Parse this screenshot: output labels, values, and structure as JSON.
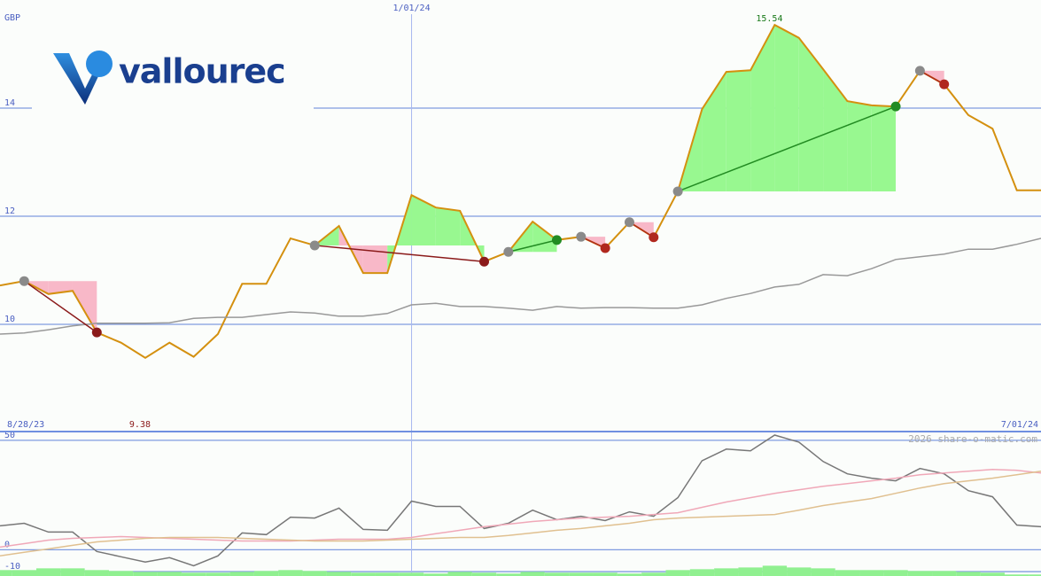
{
  "logo": "vallourec",
  "chart_data": [
    {
      "type": "line",
      "unit_label": "GBP",
      "categories": [
        "8/28/23",
        null,
        null,
        null,
        null,
        null,
        null,
        null,
        null,
        null,
        null,
        null,
        null,
        null,
        null,
        null,
        null,
        "1/01/24",
        null,
        null,
        null,
        null,
        null,
        null,
        null,
        null,
        null,
        null,
        null,
        null,
        null,
        null,
        null,
        null,
        null,
        null,
        null,
        null,
        null,
        null,
        null,
        null,
        null,
        "7/01/24"
      ],
      "series": [
        {
          "color": "#d4900f",
          "values": [
            10.72,
            10.8,
            10.56,
            10.62,
            9.85,
            9.66,
            9.38,
            9.66,
            9.4,
            9.82,
            10.75,
            10.75,
            11.59,
            11.46,
            11.82,
            10.95,
            10.95,
            12.39,
            12.16,
            12.1,
            11.16,
            11.34,
            11.9,
            11.56,
            11.62,
            11.41,
            11.89,
            11.61,
            12.46,
            13.98,
            14.67,
            14.7,
            15.54,
            15.3,
            14.72,
            14.13,
            14.05,
            14.03,
            14.69,
            14.44,
            13.87,
            13.62,
            12.48,
            12.48
          ]
        },
        {
          "color": "#999999",
          "values": [
            9.82,
            9.84,
            9.9,
            9.97,
            10.02,
            10.02,
            10.02,
            10.03,
            10.11,
            10.13,
            10.13,
            10.18,
            10.23,
            10.21,
            10.15,
            10.15,
            10.2,
            10.36,
            10.39,
            10.33,
            10.33,
            10.3,
            10.26,
            10.33,
            10.3,
            10.31,
            10.31,
            10.3,
            10.3,
            10.36,
            10.48,
            10.57,
            10.69,
            10.74,
            10.92,
            10.9,
            11.03,
            11.2,
            11.25,
            11.3,
            11.39,
            11.39,
            11.48,
            11.59
          ]
        }
      ],
      "trades": [
        {
          "start": 1,
          "end": 4,
          "color": "#8b1a1a"
        },
        {
          "start": 13,
          "end": 20,
          "color": "#8b1a1a"
        },
        {
          "start": 21,
          "end": 23,
          "color": "#228b22"
        },
        {
          "start": 24,
          "end": 25,
          "color": "#b0281e"
        },
        {
          "start": 26,
          "end": 27,
          "color": "#b0281e"
        },
        {
          "start": 28,
          "end": 37,
          "color": "#228b22"
        },
        {
          "start": 38,
          "end": 39,
          "color": "#b0281e"
        }
      ],
      "ylim": [
        8,
        16
      ],
      "yticks": [
        10,
        12,
        14
      ],
      "grid": true
    },
    {
      "type": "line",
      "credit": "2026 share-o-matic.com",
      "series": [
        {
          "color": "#777777",
          "values": [
            10.9,
            12.1,
            8.1,
            8.1,
            -0.8,
            -3.2,
            -5.6,
            -3.6,
            -7.3,
            -2.8,
            7.7,
            6.9,
            14.9,
            14.5,
            19.0,
            9.3,
            8.9,
            22.2,
            19.8,
            19.8,
            9.7,
            12.1,
            18.1,
            13.7,
            15.3,
            13.3,
            17.3,
            15.3,
            23.8,
            40.7,
            46.0,
            45.2,
            52.4,
            49.2,
            40.3,
            34.7,
            32.7,
            31.5,
            37.1,
            34.7,
            27.0,
            24.2,
            11.3,
            10.5
          ]
        },
        {
          "color": "#f0a8b8",
          "values": [
            1.2,
            2.8,
            4.4,
            5.2,
            5.6,
            6.0,
            5.6,
            5.2,
            4.8,
            4.4,
            4.0,
            4.0,
            4.0,
            4.4,
            4.8,
            4.8,
            4.8,
            5.6,
            7.3,
            8.9,
            10.5,
            11.7,
            12.9,
            13.7,
            14.5,
            14.9,
            15.3,
            16.1,
            16.9,
            19.4,
            21.8,
            23.8,
            25.8,
            27.4,
            29.0,
            30.2,
            31.5,
            32.7,
            34.3,
            35.1,
            35.9,
            36.7,
            36.3,
            35.1
          ]
        },
        {
          "color": "#e0c090",
          "values": [
            -2.8,
            -1.2,
            0.4,
            2.0,
            3.6,
            4.4,
            5.2,
            5.6,
            5.6,
            5.6,
            5.2,
            4.8,
            4.4,
            4.0,
            4.0,
            4.0,
            4.4,
            4.8,
            5.2,
            5.6,
            5.6,
            6.5,
            7.7,
            8.9,
            9.7,
            10.9,
            12.1,
            13.7,
            14.5,
            14.9,
            15.3,
            15.7,
            16.1,
            18.1,
            20.2,
            21.8,
            23.4,
            25.8,
            28.2,
            30.2,
            31.5,
            32.7,
            34.3,
            35.9
          ]
        }
      ],
      "bars": {
        "color": "#90f090",
        "values": [
          -9.3,
          -9.3,
          -8.5,
          -8.5,
          -9.3,
          -9.7,
          -10.1,
          -10.1,
          -10.5,
          -10.5,
          -10.1,
          -9.7,
          -9.3,
          -9.7,
          -10.1,
          -10.5,
          -10.5,
          -10.5,
          -10.9,
          -10.1,
          -10.5,
          -10.9,
          -10.1,
          -10.5,
          -10.5,
          -10.5,
          -10.9,
          -10.5,
          -9.3,
          -8.9,
          -8.5,
          -8.1,
          -7.3,
          -8.1,
          -8.5,
          -9.3,
          -9.3,
          -9.3,
          -9.7,
          -9.7,
          -10.1,
          -10.5,
          -11.3,
          -11.3
        ]
      },
      "ylim": [
        -12,
        53.6
      ],
      "yticks": [
        50,
        0,
        -10
      ],
      "grid": true
    }
  ]
}
